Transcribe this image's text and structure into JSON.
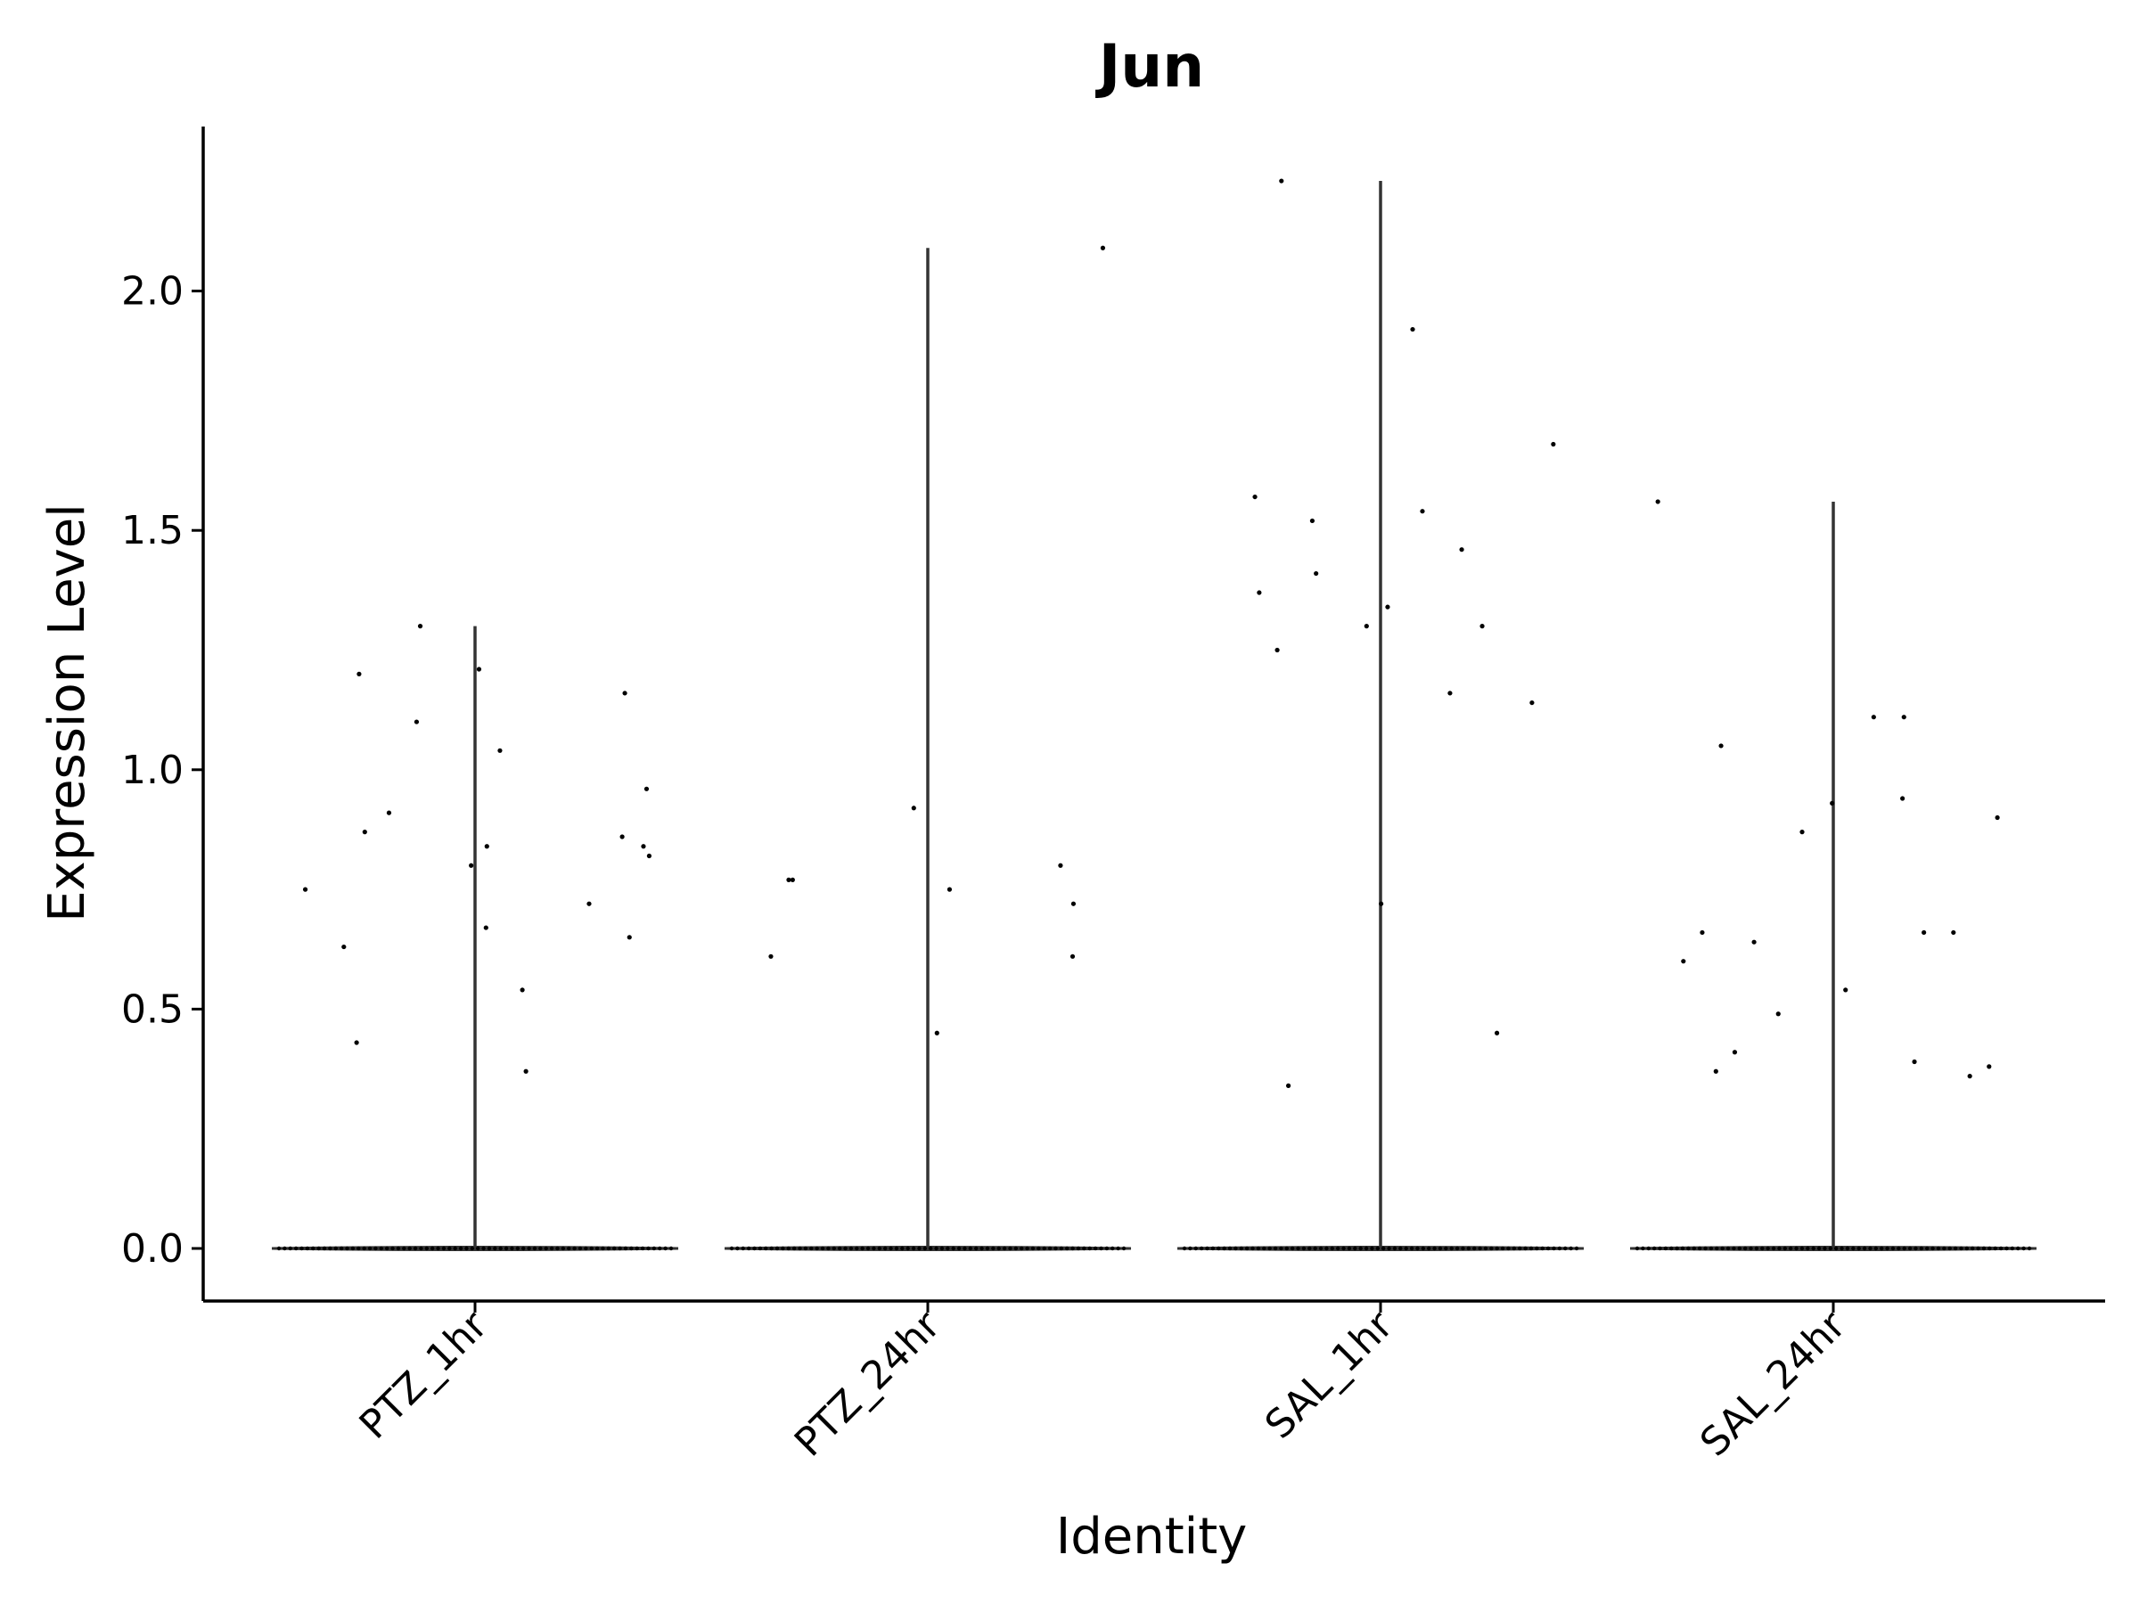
{
  "chart_data": {
    "type": "violin",
    "title": "Jun",
    "xlabel": "Identity",
    "ylabel": "Expression Level",
    "ylim": [
      -0.11,
      2.35
    ],
    "yticks": [
      "0.0",
      "0.5",
      "1.0",
      "1.5",
      "2.0"
    ],
    "ytick_values": [
      0,
      0.5,
      1.0,
      1.5,
      2.0
    ],
    "categories": [
      "PTZ_1hr",
      "PTZ_24hr",
      "SAL_1hr",
      "SAL_24hr"
    ],
    "grid": false,
    "legend": "none",
    "series": [
      {
        "category": "PTZ_1hr",
        "max": 1.3,
        "points": [
          0.91,
          1.16,
          1.04,
          0.87,
          0.75,
          0.72,
          0.96,
          0.84,
          0.84,
          0.65,
          0.8,
          0.82,
          0.54,
          0.37,
          1.2,
          0.67,
          1.1,
          0.86,
          0.43,
          1.21,
          1.3,
          0.63
        ]
      },
      {
        "category": "PTZ_24hr",
        "max": 2.09,
        "points": [
          0.92,
          0.75,
          0.72,
          0.77,
          0.8,
          0.45,
          0.61,
          0.77,
          2.09,
          0.61
        ]
      },
      {
        "category": "SAL_1hr",
        "max": 2.23,
        "points": [
          2.23,
          1.41,
          1.52,
          1.92,
          1.3,
          1.46,
          1.34,
          1.3,
          0.72,
          0.45,
          1.54,
          1.57,
          1.25,
          1.68,
          1.16,
          1.37,
          1.14,
          0.34
        ]
      },
      {
        "category": "SAL_24hr",
        "max": 1.56,
        "points": [
          0.66,
          0.39,
          1.05,
          0.54,
          0.66,
          0.64,
          0.6,
          1.11,
          1.56,
          0.41,
          0.9,
          0.93,
          0.49,
          0.36,
          0.37,
          0.94,
          0.87,
          1.11,
          0.38,
          0.66
        ]
      }
    ],
    "colors": {
      "axis": "#000000",
      "violin": "#333333",
      "point": "#000000"
    }
  }
}
